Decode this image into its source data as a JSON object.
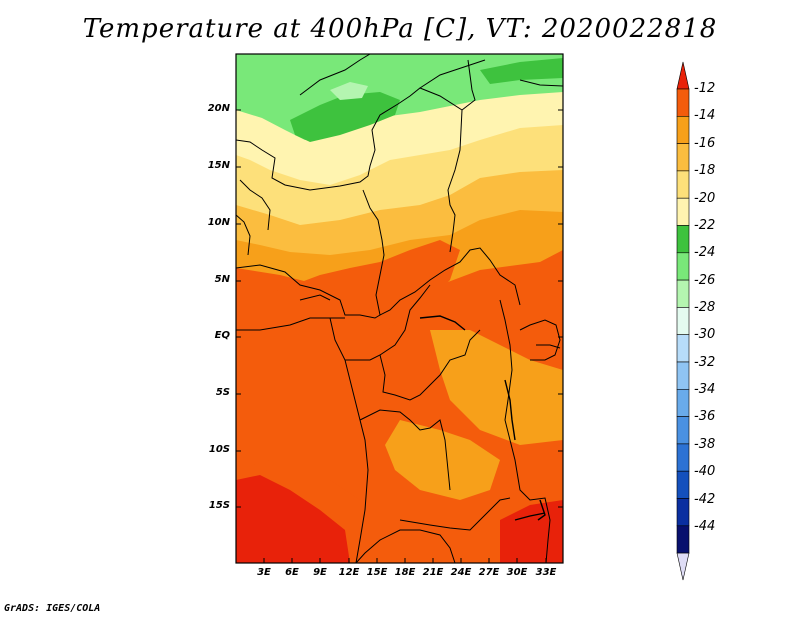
{
  "title": "Temperature at 400hPa [C], VT: 2020022818",
  "credit": "GrADS: IGES/COLA",
  "map": {
    "variable": "Temperature",
    "level": "400hPa",
    "units": "C",
    "valid_time": "2020022818",
    "lat_labels": [
      "20N",
      "15N",
      "10N",
      "5N",
      "EQ",
      "5S",
      "10S",
      "15S"
    ],
    "lon_labels": [
      "3E",
      "6E",
      "9E",
      "12E",
      "15E",
      "18E",
      "21E",
      "24E",
      "27E",
      "30E",
      "33E"
    ]
  },
  "colorbar": {
    "levels": [
      "-12",
      "-14",
      "-16",
      "-18",
      "-20",
      "-22",
      "-24",
      "-26",
      "-28",
      "-30",
      "-32",
      "-34",
      "-36",
      "-38",
      "-40",
      "-42",
      "-44"
    ],
    "colors": [
      "#e8220a",
      "#f45c0c",
      "#f7a01a",
      "#fbbd3f",
      "#fde07a",
      "#fff4b0",
      "#3ec23e",
      "#79e879",
      "#b4f5b0",
      "#e4fbf0",
      "#b7dcf9",
      "#8fc4f3",
      "#69abeb",
      "#4a91e2",
      "#2c72d4",
      "#1450bd",
      "#0a2fa0",
      "#08106e",
      "#dedcf5"
    ]
  }
}
